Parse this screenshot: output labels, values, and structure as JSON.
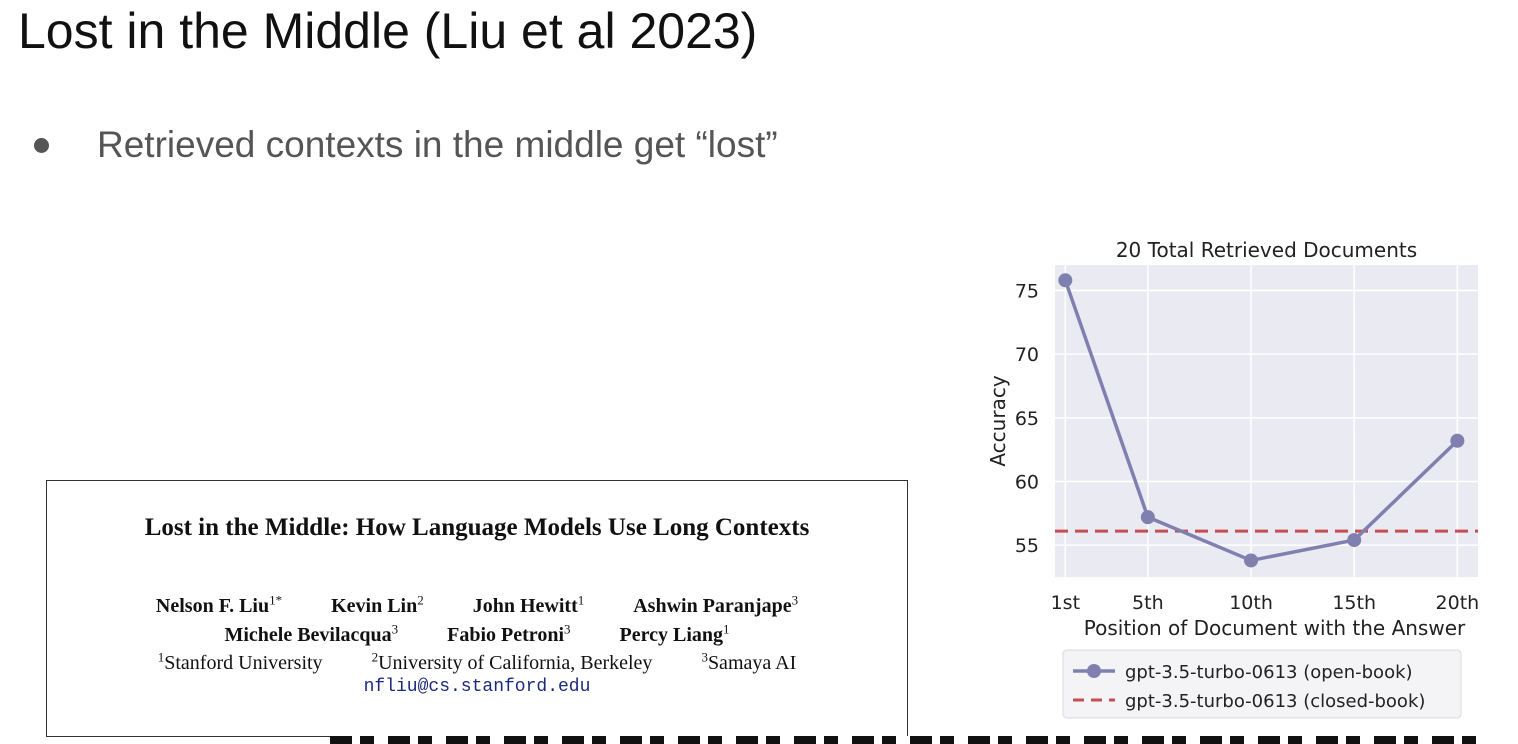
{
  "slide": {
    "title": "Lost in the Middle (Liu et al 2023)",
    "bullet": "Retrieved contexts in the middle get “lost”"
  },
  "paper": {
    "title": "Lost in the Middle: How Language Models Use Long Contexts",
    "authors_row1": [
      {
        "name": "Nelson F. Liu",
        "sup": "1*"
      },
      {
        "name": "Kevin Lin",
        "sup": "2"
      },
      {
        "name": "John Hewitt",
        "sup": "1"
      },
      {
        "name": "Ashwin Paranjape",
        "sup": "3"
      }
    ],
    "authors_row2": [
      {
        "name": "Michele Bevilacqua",
        "sup": "3"
      },
      {
        "name": "Fabio Petroni",
        "sup": "3"
      },
      {
        "name": "Percy Liang",
        "sup": "1"
      }
    ],
    "affiliations": [
      {
        "sup": "1",
        "name": "Stanford University"
      },
      {
        "sup": "2",
        "name": "University of California, Berkeley"
      },
      {
        "sup": "3",
        "name": "Samaya AI"
      }
    ],
    "email": "nfliu@cs.stanford.edu"
  },
  "chart_data": {
    "type": "line",
    "title": "20 Total Retrieved Documents",
    "xlabel": "Position of Document with the Answer",
    "ylabel": "Accuracy",
    "categories": [
      "1st",
      "5th",
      "10th",
      "15th",
      "20th"
    ],
    "x": [
      1,
      5,
      10,
      15,
      20
    ],
    "xlim": [
      0.5,
      21
    ],
    "ylim": [
      52.5,
      77
    ],
    "yticks": [
      55,
      60,
      65,
      70,
      75
    ],
    "grid": true,
    "legend_position": "bottom",
    "series": [
      {
        "name": "gpt-3.5-turbo-0613 (open-book)",
        "values": [
          75.8,
          57.2,
          53.8,
          55.4,
          63.2
        ],
        "color": "#8080b0",
        "style": "solid-marker"
      },
      {
        "name": "gpt-3.5-turbo-0613 (closed-book)",
        "values": [
          56.1,
          56.1,
          56.1,
          56.1,
          56.1
        ],
        "color": "#c44e52",
        "style": "dashed"
      }
    ],
    "plot_bg": "#eaeaf2"
  }
}
